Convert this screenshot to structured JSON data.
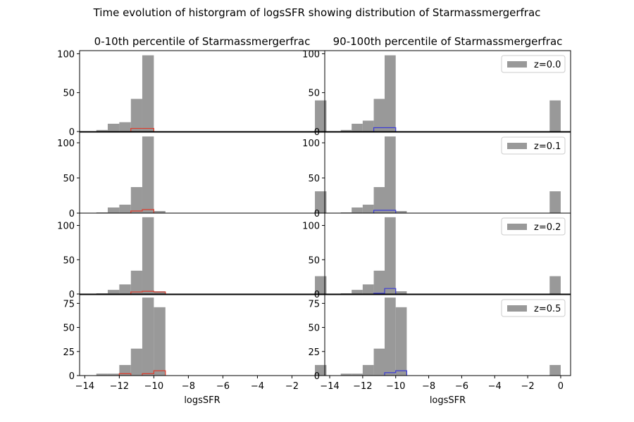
{
  "figure": {
    "title": "Time evolution of historgram of logsSFR showing distribution of Starmassmergerfrac"
  },
  "colors": {
    "all_bars": "#999999",
    "low_percentile_outline": "#dd3b2b",
    "high_percentile_outline": "#3b3bd6",
    "axes": "#000000"
  },
  "chart_data": [
    {
      "type": "bar",
      "title": "0-10th percentile of Starmassmergerfrac",
      "panel": "left",
      "z_label": "z=0.0",
      "xlabel": "",
      "xlim": [
        -14.3,
        -0.1
      ],
      "ylim": [
        0,
        104
      ],
      "yticks": [
        0,
        50,
        100
      ],
      "xticks": [],
      "legend": "",
      "series": [
        {
          "name": "z=0.0",
          "bin_edges": [
            -14,
            -13.33,
            -12.67,
            -12,
            -11.33,
            -10.67,
            -10,
            -9.33,
            -8.67,
            -8,
            -7.33,
            -6.67,
            -6,
            -5.33,
            -4.67,
            -4,
            -3.33,
            -2.67,
            -2,
            -1.33,
            -0.67,
            0
          ],
          "counts": [
            0,
            2,
            10,
            12,
            42,
            98,
            0,
            0,
            0,
            0,
            0,
            0,
            0,
            0,
            0,
            0,
            0,
            0,
            0,
            0,
            40
          ]
        },
        {
          "name": "",
          "style": "step",
          "bin_edges": [
            -14,
            -13.33,
            -12.67,
            -12,
            -11.33,
            -10.67,
            -10,
            -9.33,
            -8.67,
            -8,
            -7.33,
            -6.67,
            -6,
            -5.33,
            -4.67,
            -4,
            -3.33,
            -2.67,
            -2,
            -1.33,
            -0.67,
            0
          ],
          "counts": [
            0,
            0,
            0,
            0,
            4,
            4,
            0,
            0,
            0,
            0,
            0,
            0,
            0,
            0,
            0,
            0,
            0,
            0,
            0,
            0,
            0
          ]
        }
      ]
    },
    {
      "type": "bar",
      "title": "90-100th percentile of Starmassmergerfrac",
      "panel": "right",
      "z_label": "z=0.0",
      "xlabel": "",
      "xlim": [
        -14.3,
        0.6
      ],
      "ylim": [
        0,
        104
      ],
      "yticks": [
        0,
        50,
        100
      ],
      "xticks": [],
      "legend": "top-right",
      "series": [
        {
          "name": "z=0.0",
          "bin_edges": [
            -14,
            -13.33,
            -12.67,
            -12,
            -11.33,
            -10.67,
            -10,
            -9.33,
            -8.67,
            -8,
            -7.33,
            -6.67,
            -6,
            -5.33,
            -4.67,
            -4,
            -3.33,
            -2.67,
            -2,
            -1.33,
            -0.67,
            0
          ],
          "counts": [
            0,
            2,
            10,
            14,
            42,
            98,
            0,
            0,
            0,
            0,
            0,
            0,
            0,
            0,
            0,
            0,
            0,
            0,
            0,
            0,
            40
          ]
        },
        {
          "name": "",
          "style": "step",
          "bin_edges": [
            -14,
            -13.33,
            -12.67,
            -12,
            -11.33,
            -10.67,
            -10,
            -9.33,
            -8.67,
            -8,
            -7.33,
            -6.67,
            -6,
            -5.33,
            -4.67,
            -4,
            -3.33,
            -2.67,
            -2,
            -1.33,
            -0.67,
            0
          ],
          "counts": [
            0,
            0,
            0,
            0,
            5,
            5,
            0,
            0,
            0,
            0,
            0,
            0,
            0,
            0,
            0,
            0,
            0,
            0,
            0,
            0,
            0
          ]
        }
      ]
    },
    {
      "type": "bar",
      "title": "",
      "panel": "left",
      "z_label": "z=0.1",
      "xlabel": "",
      "xlim": [
        -14.3,
        -0.1
      ],
      "ylim": [
        0,
        115
      ],
      "yticks": [
        0,
        50,
        100
      ],
      "xticks": [],
      "legend": "",
      "series": [
        {
          "name": "z=0.1",
          "bin_edges": [
            -14,
            -13.33,
            -12.67,
            -12,
            -11.33,
            -10.67,
            -10,
            -9.33,
            -8.67,
            -8,
            -7.33,
            -6.67,
            -6,
            -5.33,
            -4.67,
            -4,
            -3.33,
            -2.67,
            -2,
            -1.33,
            -0.67,
            0
          ],
          "counts": [
            0,
            1,
            8,
            12,
            37,
            109,
            3,
            0,
            0,
            0,
            0,
            0,
            0,
            0,
            0,
            0,
            0,
            0,
            0,
            0,
            31
          ]
        },
        {
          "name": "",
          "style": "step",
          "bin_edges": [
            -14,
            -13.33,
            -12.67,
            -12,
            -11.33,
            -10.67,
            -10,
            -9.33,
            -8.67,
            -8,
            -7.33,
            -6.67,
            -6,
            -5.33,
            -4.67,
            -4,
            -3.33,
            -2.67,
            -2,
            -1.33,
            -0.67,
            0
          ],
          "counts": [
            0,
            0,
            0,
            0,
            3,
            5,
            0,
            0,
            0,
            0,
            0,
            0,
            0,
            0,
            0,
            0,
            0,
            0,
            0,
            0,
            0
          ]
        }
      ]
    },
    {
      "type": "bar",
      "title": "",
      "panel": "right",
      "z_label": "z=0.1",
      "xlabel": "",
      "xlim": [
        -14.3,
        0.6
      ],
      "ylim": [
        0,
        115
      ],
      "yticks": [
        0,
        50,
        100
      ],
      "xticks": [],
      "legend": "top-right",
      "series": [
        {
          "name": "z=0.1",
          "bin_edges": [
            -14,
            -13.33,
            -12.67,
            -12,
            -11.33,
            -10.67,
            -10,
            -9.33,
            -8.67,
            -8,
            -7.33,
            -6.67,
            -6,
            -5.33,
            -4.67,
            -4,
            -3.33,
            -2.67,
            -2,
            -1.33,
            -0.67,
            0
          ],
          "counts": [
            0,
            1,
            8,
            12,
            37,
            109,
            3,
            0,
            0,
            0,
            0,
            0,
            0,
            0,
            0,
            0,
            0,
            0,
            0,
            0,
            31
          ]
        },
        {
          "name": "",
          "style": "step",
          "bin_edges": [
            -14,
            -13.33,
            -12.67,
            -12,
            -11.33,
            -10.67,
            -10,
            -9.33,
            -8.67,
            -8,
            -7.33,
            -6.67,
            -6,
            -5.33,
            -4.67,
            -4,
            -3.33,
            -2.67,
            -2,
            -1.33,
            -0.67,
            0
          ],
          "counts": [
            0,
            0,
            0,
            0,
            4,
            4,
            0,
            0,
            0,
            0,
            0,
            0,
            0,
            0,
            0,
            0,
            0,
            0,
            0,
            0,
            0
          ]
        }
      ]
    },
    {
      "type": "bar",
      "title": "",
      "panel": "left",
      "z_label": "z=0.2",
      "xlabel": "",
      "xlim": [
        -14.3,
        -0.1
      ],
      "ylim": [
        0,
        118
      ],
      "yticks": [
        0,
        50,
        100
      ],
      "xticks": [],
      "legend": "",
      "series": [
        {
          "name": "z=0.2",
          "bin_edges": [
            -14,
            -13.33,
            -12.67,
            -12,
            -11.33,
            -10.67,
            -10,
            -9.33,
            -8.67,
            -8,
            -7.33,
            -6.67,
            -6,
            -5.33,
            -4.67,
            -4,
            -3.33,
            -2.67,
            -2,
            -1.33,
            -0.67,
            0
          ],
          "counts": [
            0,
            1,
            6,
            14,
            34,
            112,
            4,
            0,
            0,
            0,
            0,
            0,
            0,
            0,
            0,
            0,
            0,
            0,
            0,
            0,
            26
          ]
        },
        {
          "name": "",
          "style": "step",
          "bin_edges": [
            -14,
            -13.33,
            -12.67,
            -12,
            -11.33,
            -10.67,
            -10,
            -9.33,
            -8.67,
            -8,
            -7.33,
            -6.67,
            -6,
            -5.33,
            -4.67,
            -4,
            -3.33,
            -2.67,
            -2,
            -1.33,
            -0.67,
            0
          ],
          "counts": [
            0,
            0,
            0,
            0,
            3,
            4,
            3,
            0,
            0,
            0,
            0,
            0,
            0,
            0,
            0,
            0,
            0,
            0,
            0,
            0,
            0
          ]
        }
      ]
    },
    {
      "type": "bar",
      "title": "",
      "panel": "right",
      "z_label": "z=0.2",
      "xlabel": "",
      "xlim": [
        -14.3,
        0.6
      ],
      "ylim": [
        0,
        118
      ],
      "yticks": [
        0,
        50,
        100
      ],
      "xticks": [],
      "legend": "top-right",
      "series": [
        {
          "name": "z=0.2",
          "bin_edges": [
            -14,
            -13.33,
            -12.67,
            -12,
            -11.33,
            -10.67,
            -10,
            -9.33,
            -8.67,
            -8,
            -7.33,
            -6.67,
            -6,
            -5.33,
            -4.67,
            -4,
            -3.33,
            -2.67,
            -2,
            -1.33,
            -0.67,
            0
          ],
          "counts": [
            0,
            1,
            6,
            14,
            34,
            112,
            4,
            0,
            0,
            0,
            0,
            0,
            0,
            0,
            0,
            0,
            0,
            0,
            0,
            0,
            26
          ]
        },
        {
          "name": "",
          "style": "step",
          "bin_edges": [
            -14,
            -13.33,
            -12.67,
            -12,
            -11.33,
            -10.67,
            -10,
            -9.33,
            -8.67,
            -8,
            -7.33,
            -6.67,
            -6,
            -5.33,
            -4.67,
            -4,
            -3.33,
            -2.67,
            -2,
            -1.33,
            -0.67,
            0
          ],
          "counts": [
            0,
            0,
            0,
            0,
            1,
            8,
            0,
            0,
            0,
            0,
            0,
            0,
            0,
            0,
            0,
            0,
            0,
            0,
            0,
            0,
            0
          ]
        }
      ]
    },
    {
      "type": "bar",
      "title": "",
      "panel": "left",
      "z_label": "z=0.5",
      "xlabel": "logsSFR",
      "xlim": [
        -14.3,
        -0.1
      ],
      "ylim": [
        0,
        84
      ],
      "yticks": [
        0,
        25,
        50,
        75
      ],
      "xticks": [
        -14,
        -12,
        -10,
        -8,
        -6,
        -4,
        -2
      ],
      "legend": "",
      "series": [
        {
          "name": "z=0.5",
          "bin_edges": [
            -14,
            -13.33,
            -12.67,
            -12,
            -11.33,
            -10.67,
            -10,
            -9.33,
            -8.67,
            -8,
            -7.33,
            -6.67,
            -6,
            -5.33,
            -4.67,
            -4,
            -3.33,
            -2.67,
            -2,
            -1.33,
            -0.67,
            0
          ],
          "counts": [
            0,
            2,
            2,
            11,
            28,
            81,
            71,
            0,
            0,
            0,
            0,
            0,
            0,
            0,
            0,
            0,
            0,
            0,
            0,
            0,
            11
          ]
        },
        {
          "name": "",
          "style": "step",
          "bin_edges": [
            -14,
            -13.33,
            -12.67,
            -12,
            -11.33,
            -10.67,
            -10,
            -9.33,
            -8.67,
            -8,
            -7.33,
            -6.67,
            -6,
            -5.33,
            -4.67,
            -4,
            -3.33,
            -2.67,
            -2,
            -1.33,
            -0.67,
            0
          ],
          "counts": [
            0,
            0,
            0,
            2,
            0,
            2,
            5,
            0,
            0,
            0,
            0,
            0,
            0,
            0,
            0,
            0,
            0,
            0,
            0,
            0,
            0
          ]
        }
      ]
    },
    {
      "type": "bar",
      "title": "",
      "panel": "right",
      "z_label": "z=0.5",
      "xlabel": "logsSFR",
      "xlim": [
        -14.3,
        0.6
      ],
      "ylim": [
        0,
        84
      ],
      "yticks": [
        0,
        25,
        50,
        75
      ],
      "xticks": [
        -14,
        -12,
        -10,
        -8,
        -6,
        -4,
        -2,
        0
      ],
      "legend": "top-right",
      "series": [
        {
          "name": "z=0.5",
          "bin_edges": [
            -14,
            -13.33,
            -12.67,
            -12,
            -11.33,
            -10.67,
            -10,
            -9.33,
            -8.67,
            -8,
            -7.33,
            -6.67,
            -6,
            -5.33,
            -4.67,
            -4,
            -3.33,
            -2.67,
            -2,
            -1.33,
            -0.67,
            0
          ],
          "counts": [
            0,
            2,
            2,
            11,
            28,
            81,
            71,
            0,
            0,
            0,
            0,
            0,
            0,
            0,
            0,
            0,
            0,
            0,
            0,
            0,
            11
          ]
        },
        {
          "name": "",
          "style": "step",
          "bin_edges": [
            -14,
            -13.33,
            -12.67,
            -12,
            -11.33,
            -10.67,
            -10,
            -9.33,
            -8.67,
            -8,
            -7.33,
            -6.67,
            -6,
            -5.33,
            -4.67,
            -4,
            -3.33,
            -2.67,
            -2,
            -1.33,
            -0.67,
            0
          ],
          "counts": [
            0,
            0,
            0,
            0,
            0,
            3,
            5,
            0,
            0,
            0,
            0,
            0,
            0,
            0,
            0,
            0,
            0,
            0,
            0,
            0,
            0
          ]
        }
      ]
    }
  ]
}
